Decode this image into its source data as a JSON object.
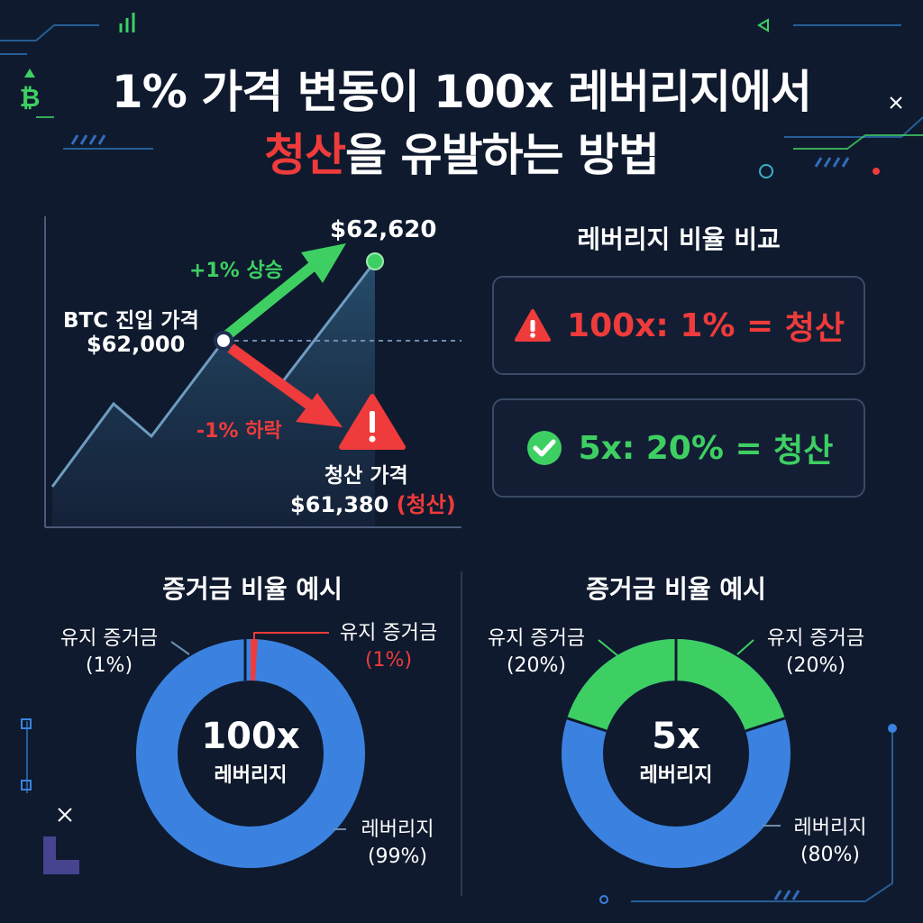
{
  "title": {
    "line1": "1% 가격 변동이 100x 레버리지에서",
    "line2_highlight": "청산",
    "line2_rest": "을 유발하는 방법"
  },
  "price_chart": {
    "rise_label": "+1% 상승",
    "fall_label": "-1% 하락",
    "high_price": "$62,620",
    "entry_label": "BTC 진입 가격",
    "entry_price": "$62,000",
    "liq_label": "청산 가격",
    "liq_price": "$61,380",
    "liq_tag": "(청산)"
  },
  "comparison": {
    "title": "레버리지 비율 비교",
    "row_100x_prefix": "100x: 1% = ",
    "row_100x_result": "청산",
    "row_5x_prefix": "5x: 20% = ",
    "row_5x_result": "청산"
  },
  "donut_100x": {
    "title": "증거금 비율 예시",
    "center_value": "100x",
    "center_label": "레버리지",
    "label_left_name": "유지 증거금",
    "label_left_pct": "(1%)",
    "label_right_name": "유지 증거금",
    "label_right_pct": "(1%)",
    "label_bottom_name": "레버리지",
    "label_bottom_pct": "(99%)"
  },
  "donut_5x": {
    "title": "증거금 비율 예시",
    "center_value": "5x",
    "center_label": "레버리지",
    "label_left_name": "유지 증거금",
    "label_left_pct": "(20%)",
    "label_right_name": "유지 증거금",
    "label_right_pct": "(20%)",
    "label_bottom_name": "레버리지",
    "label_bottom_pct": "(80%)"
  },
  "colors": {
    "background": "#0f1a2e",
    "red": "#ef3b3b",
    "green": "#3ecf63",
    "blue": "#3b82e0"
  },
  "icons": [
    "bitcoin-icon",
    "close-icon",
    "warning-icon",
    "check-circle-icon",
    "sparkle-icon"
  ]
}
